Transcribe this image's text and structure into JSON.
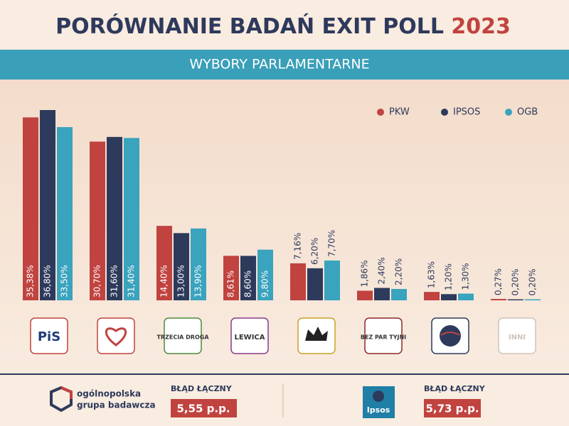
{
  "chart_data": {
    "type": "bar",
    "title": "PORÓWNANIE BADAŃ EXIT POLL",
    "title_year": "2023",
    "subtitle": "WYBORY PARLAMENTARNE",
    "categories": [
      "PiS",
      null,
      "TRZECIA DROGA",
      "LEWICA",
      null,
      "BEZ PAR TYJNI",
      null,
      "INNI"
    ],
    "series": [
      {
        "name": "PKW",
        "color": "#c0433f",
        "values": [
          35.38,
          30.7,
          14.4,
          8.61,
          7.16,
          1.86,
          1.63,
          0.27
        ],
        "value_labels": [
          "35,38%",
          "30,70%",
          "14,40%",
          "8,61%",
          "7,16%",
          "1,86%",
          "1,63%",
          "0,27%"
        ]
      },
      {
        "name": "IPSOS",
        "color": "#2e3a5c",
        "values": [
          36.8,
          31.6,
          13.0,
          8.6,
          6.2,
          2.4,
          1.2,
          0.2
        ],
        "value_labels": [
          "36,80%",
          "31,60%",
          "13,00%",
          "8,60%",
          "6,20%",
          "2,40%",
          "1,20%",
          "0,20%"
        ]
      },
      {
        "name": "OGB",
        "color": "#3aa3bd",
        "values": [
          33.5,
          31.4,
          13.9,
          9.8,
          7.7,
          2.2,
          1.3,
          0.2
        ],
        "value_labels": [
          "33,50%",
          "31,40%",
          "13,90%",
          "9,80%",
          "7,70%",
          "2,20%",
          "1,30%",
          "0,20%"
        ]
      }
    ],
    "legend": "top-right"
  },
  "footer": {
    "left": {
      "org_line1": "ogólnopolska",
      "org_line2": "grupa badawcza",
      "error_title": "BŁĄD ŁĄCZNY",
      "error_value": "5,55 p.p."
    },
    "right": {
      "logo": "Ipsos",
      "error_title": "BŁĄD ŁĄCZNY",
      "error_value": "5,73 p.p."
    }
  }
}
